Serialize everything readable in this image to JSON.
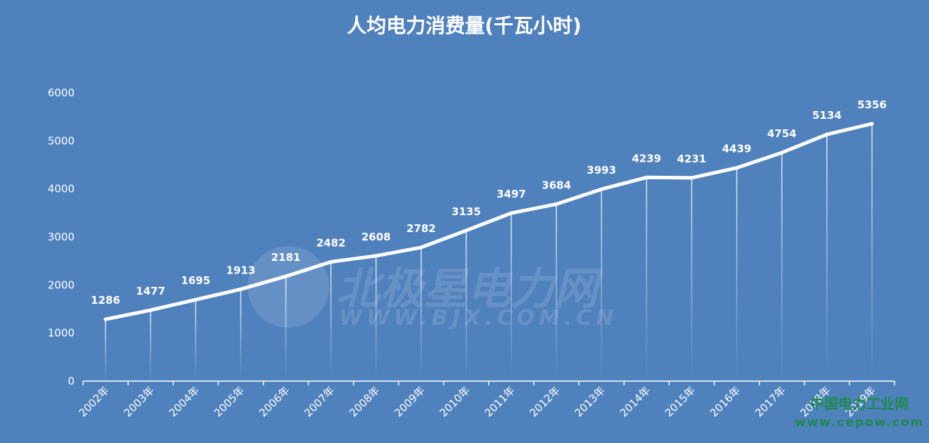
{
  "chart_data": {
    "type": "line",
    "title": "人均电力消费量(千瓦小时)",
    "categories": [
      "2002年",
      "2003年",
      "2004年",
      "2005年",
      "2006年",
      "2007年",
      "2008年",
      "2009年",
      "2010年",
      "2011年",
      "2012年",
      "2013年",
      "2014年",
      "2015年",
      "2016年",
      "2017年",
      "2018年",
      "2019年"
    ],
    "values": [
      1286,
      1477,
      1695,
      1913,
      2181,
      2482,
      2608,
      2782,
      3135,
      3497,
      3684,
      3993,
      4239,
      4231,
      4439,
      4754,
      5134,
      5356
    ],
    "ylim": [
      0,
      6000
    ],
    "yticks": [
      0,
      1000,
      2000,
      3000,
      4000,
      5000,
      6000
    ],
    "grid": false,
    "data_labels": true,
    "drop_lines": true,
    "line_color": "#ffffff",
    "background_color": "#4f81bd"
  },
  "watermark": {
    "text_cn": "北极星电力网",
    "text_en": "WWW.BJX.COM.CN"
  },
  "corner_logo": {
    "text_cn": "中国电力工业网",
    "text_en": "www.cepow.com"
  }
}
